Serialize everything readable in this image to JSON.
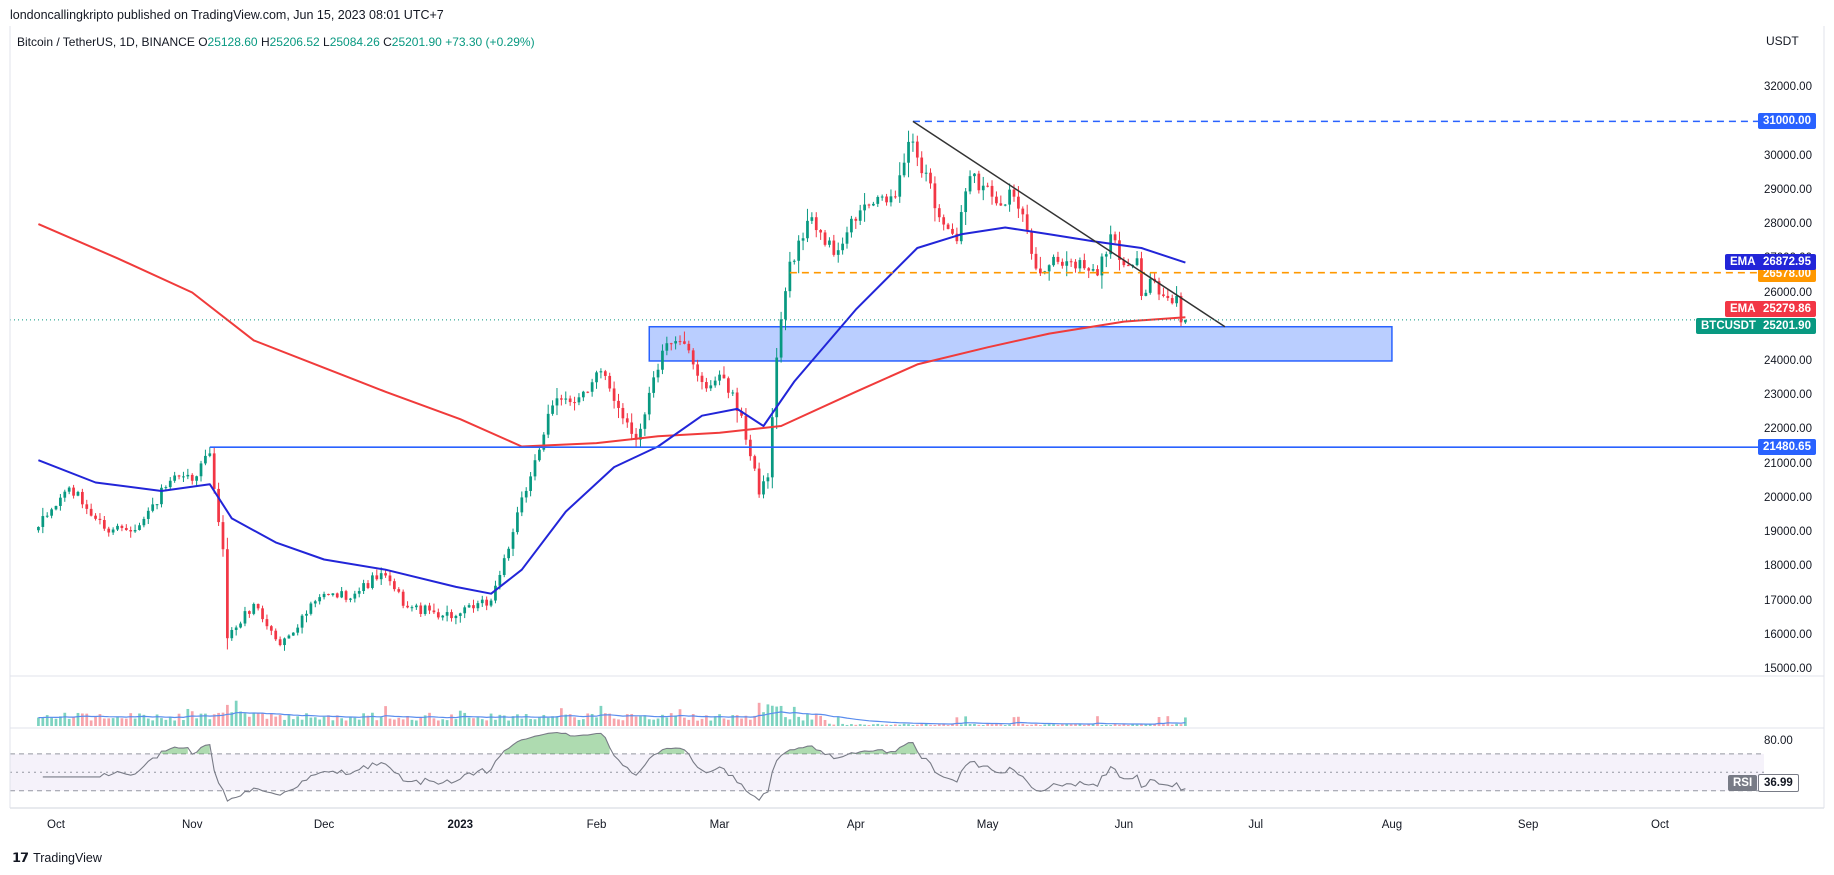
{
  "header": {
    "published": "londoncallingkripto published on TradingView.com, Jun 15, 2023 08:01 UTC+7",
    "symbol": "Bitcoin / TetherUS, 1D, BINANCE",
    "open_label": "O",
    "open": "25128.60",
    "high_label": "H",
    "high": "25206.52",
    "low_label": "L",
    "low": "25084.26",
    "close_label": "C",
    "close": "25201.90",
    "change": "+73.30 (+0.29%)",
    "currency": "USDT"
  },
  "footer": {
    "brand": "TradingView",
    "logo": "tradingview-logo-icon"
  },
  "colors": {
    "up": "#089981",
    "down": "#f23645",
    "ema50": "#2225d8",
    "ema200": "#f03b3b",
    "trendline": "#333333",
    "resistance": "#2962ff",
    "support_orange": "#ff9800",
    "zone_fill": "#aec5ff",
    "zone_border": "#2962ff",
    "rsi": "#787b86"
  },
  "chart_data": [
    {
      "type": "candlestick",
      "title": "",
      "x_ticks": [
        "Oct",
        "Nov",
        "Dec",
        "2023",
        "Feb",
        "Mar",
        "Apr",
        "May",
        "Jun",
        "Jul",
        "Aug",
        "Sep",
        "Oct"
      ],
      "x_tick_dates": [
        "2022-10-01",
        "2022-11-01",
        "2022-12-01",
        "2023-01-01",
        "2023-02-01",
        "2023-03-01",
        "2023-04-01",
        "2023-05-01",
        "2023-06-01",
        "2023-07-01",
        "2023-08-01",
        "2023-09-01",
        "2023-10-01"
      ],
      "x_range": [
        "2022-09-27",
        "2023-10-31"
      ],
      "y_ticks": [
        15000,
        16000,
        17000,
        18000,
        19000,
        20000,
        21000,
        22000,
        23000,
        24000,
        25000,
        26000,
        27000,
        28000,
        29000,
        30000,
        31000,
        32000
      ],
      "y_range": [
        14600,
        33300
      ],
      "anchors": [
        [
          "2022-09-27",
          19150
        ],
        [
          "2022-10-04",
          20300
        ],
        [
          "2022-10-12",
          19100
        ],
        [
          "2022-10-20",
          19200
        ],
        [
          "2022-10-27",
          20500
        ],
        [
          "2022-11-01",
          20500
        ],
        [
          "2022-11-05",
          21300
        ],
        [
          "2022-11-08",
          18500
        ],
        [
          "2022-11-09",
          15900
        ],
        [
          "2022-11-15",
          16900
        ],
        [
          "2022-11-21",
          15700
        ],
        [
          "2022-11-30",
          17100
        ],
        [
          "2022-12-08",
          17200
        ],
        [
          "2022-12-14",
          17800
        ],
        [
          "2022-12-20",
          16800
        ],
        [
          "2022-12-31",
          16550
        ],
        [
          "2023-01-08",
          17000
        ],
        [
          "2023-01-13",
          19000
        ],
        [
          "2023-01-18",
          21100
        ],
        [
          "2023-01-22",
          22700
        ],
        [
          "2023-01-30",
          23100
        ],
        [
          "2023-02-02",
          23700
        ],
        [
          "2023-02-10",
          21700
        ],
        [
          "2023-02-16",
          24300
        ],
        [
          "2023-02-21",
          24500
        ],
        [
          "2023-02-26",
          23200
        ],
        [
          "2023-03-01",
          23600
        ],
        [
          "2023-03-06",
          22400
        ],
        [
          "2023-03-10",
          20100
        ],
        [
          "2023-03-12",
          20600
        ],
        [
          "2023-03-14",
          24100
        ],
        [
          "2023-03-17",
          26900
        ],
        [
          "2023-03-22",
          28200
        ],
        [
          "2023-03-27",
          27100
        ],
        [
          "2023-04-02",
          28400
        ],
        [
          "2023-04-10",
          28800
        ],
        [
          "2023-04-13",
          30400
        ],
        [
          "2023-04-17",
          29500
        ],
        [
          "2023-04-20",
          28200
        ],
        [
          "2023-04-24",
          27500
        ],
        [
          "2023-04-27",
          29400
        ],
        [
          "2023-05-02",
          28800
        ],
        [
          "2023-05-07",
          28800
        ],
        [
          "2023-05-10",
          27800
        ],
        [
          "2023-05-12",
          26700
        ],
        [
          "2023-05-20",
          26900
        ],
        [
          "2023-05-26",
          26500
        ],
        [
          "2023-05-29",
          27700
        ],
        [
          "2023-06-01",
          26800
        ],
        [
          "2023-06-04",
          27000
        ],
        [
          "2023-06-05",
          25900
        ],
        [
          "2023-06-07",
          26400
        ],
        [
          "2023-06-10",
          25900
        ],
        [
          "2023-06-13",
          25900
        ],
        [
          "2023-06-14",
          25128.6
        ]
      ],
      "last_candle": {
        "date": "2023-06-15",
        "open": 25128.6,
        "high": 25206.52,
        "low": 25084.26,
        "close": 25201.9
      },
      "ema_fast": {
        "label": "EMA",
        "value_label": "26872.95",
        "points": [
          [
            "2022-09-27",
            21100
          ],
          [
            "2022-10-10",
            20450
          ],
          [
            "2022-10-25",
            20200
          ],
          [
            "2022-11-05",
            20400
          ],
          [
            "2022-11-10",
            19400
          ],
          [
            "2022-11-20",
            18700
          ],
          [
            "2022-12-01",
            18200
          ],
          [
            "2022-12-15",
            17900
          ],
          [
            "2022-12-31",
            17400
          ],
          [
            "2023-01-08",
            17200
          ],
          [
            "2023-01-15",
            17900
          ],
          [
            "2023-01-25",
            19600
          ],
          [
            "2023-02-05",
            20900
          ],
          [
            "2023-02-15",
            21500
          ],
          [
            "2023-02-25",
            22400
          ],
          [
            "2023-03-05",
            22600
          ],
          [
            "2023-03-11",
            22100
          ],
          [
            "2023-03-18",
            23400
          ],
          [
            "2023-04-01",
            25500
          ],
          [
            "2023-04-15",
            27300
          ],
          [
            "2023-04-25",
            27700
          ],
          [
            "2023-05-05",
            27900
          ],
          [
            "2023-05-15",
            27700
          ],
          [
            "2023-05-25",
            27500
          ],
          [
            "2023-06-05",
            27300
          ],
          [
            "2023-06-15",
            26873
          ]
        ]
      },
      "ema_slow": {
        "label": "EMA",
        "value_label": "25279.86",
        "points": [
          [
            "2022-09-27",
            28000
          ],
          [
            "2022-10-15",
            27000
          ],
          [
            "2022-11-01",
            26000
          ],
          [
            "2022-11-15",
            24600
          ],
          [
            "2022-12-01",
            23800
          ],
          [
            "2022-12-15",
            23100
          ],
          [
            "2023-01-01",
            22300
          ],
          [
            "2023-01-15",
            21500
          ],
          [
            "2023-02-01",
            21600
          ],
          [
            "2023-02-15",
            21800
          ],
          [
            "2023-03-01",
            21900
          ],
          [
            "2023-03-15",
            22100
          ],
          [
            "2023-04-01",
            23100
          ],
          [
            "2023-04-15",
            23900
          ],
          [
            "2023-05-01",
            24400
          ],
          [
            "2023-05-15",
            24800
          ],
          [
            "2023-06-01",
            25150
          ],
          [
            "2023-06-15",
            25280
          ]
        ]
      },
      "horizontal_lines": [
        {
          "price": 31000,
          "label": "31000.00",
          "style": "dashed",
          "color": "#2962ff",
          "from": "2023-04-14"
        },
        {
          "price": 26578,
          "label": "26578.00",
          "style": "dashed",
          "color": "#ff9800",
          "from": "2023-03-17"
        },
        {
          "price": 21480.65,
          "label": "21480.65",
          "style": "solid",
          "color": "#2962ff",
          "from": "2022-11-05"
        }
      ],
      "trendline": {
        "from": [
          "2023-04-14",
          31000
        ],
        "to": [
          "2023-06-24",
          25000
        ]
      },
      "zone": {
        "from": "2023-02-13",
        "to": "2023-08-01",
        "top": 25000,
        "bottom": 24000
      },
      "last_price": {
        "symbol": "BTCUSDT",
        "label": "25201.90",
        "price": 25201.9
      }
    },
    {
      "type": "bar",
      "title": "",
      "series": [
        {
          "name": "",
          "description": "daily volume, relative scale"
        }
      ],
      "note": "volume bars with moving-average line"
    },
    {
      "type": "line",
      "title": "",
      "y_ticks": [
        80
      ],
      "band": [
        30,
        70
      ],
      "last_value": {
        "label": "RSI",
        "value": "36.99"
      }
    }
  ]
}
